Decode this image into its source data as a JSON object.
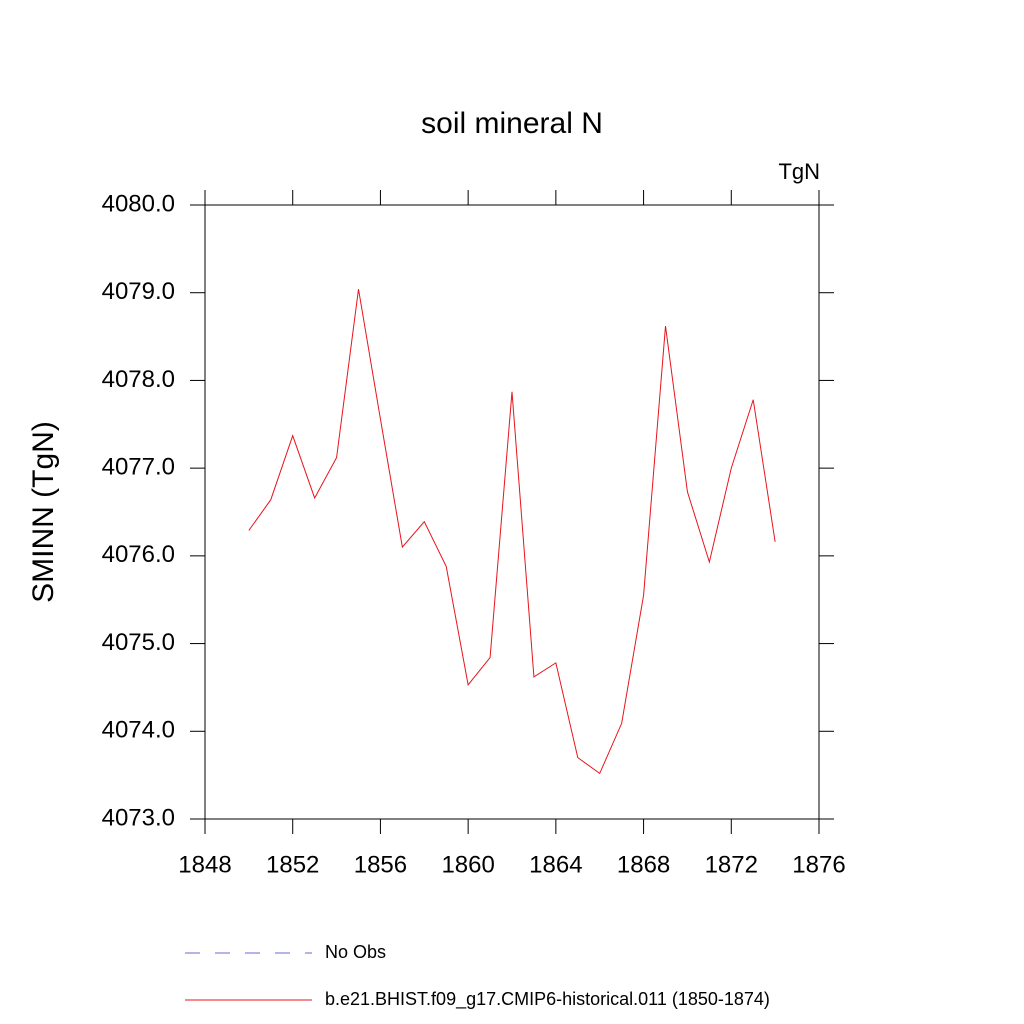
{
  "chart_data": {
    "type": "line",
    "title": "soil mineral N",
    "units": "TgN",
    "y_label": "SMINN  (TgN)",
    "x": [
      1850,
      1851,
      1852,
      1853,
      1854,
      1855,
      1856,
      1857,
      1858,
      1859,
      1860,
      1861,
      1862,
      1863,
      1864,
      1865,
      1866,
      1867,
      1868,
      1869,
      1870,
      1871,
      1872,
      1873,
      1874
    ],
    "series": [
      {
        "name": "b.e21.BHIST.f09_g17.CMIP6-historical.011 (1850-1874)",
        "color": "#e8141c",
        "values": [
          4076.29,
          4076.64,
          4077.37,
          4076.66,
          4077.12,
          4079.04,
          4077.56,
          4076.1,
          4076.39,
          4075.88,
          4074.53,
          4074.84,
          4077.87,
          4074.62,
          4074.78,
          4073.7,
          4073.52,
          4074.09,
          4075.55,
          4078.62,
          4076.73,
          4075.93,
          4077.0,
          4077.78,
          4076.16
        ]
      }
    ],
    "obs_legend": {
      "name": "No Obs",
      "color": "#6a6ad0",
      "dashed": true
    },
    "xlim": [
      1848,
      1876
    ],
    "xticks": [
      1848,
      1852,
      1856,
      1860,
      1864,
      1868,
      1872,
      1876
    ],
    "ylim": [
      4073,
      4080
    ],
    "yticks": [
      {
        "value": 4073,
        "label": "4073.0"
      },
      {
        "value": 4074,
        "label": "4074.0"
      },
      {
        "value": 4075,
        "label": "4075.0"
      },
      {
        "value": 4076,
        "label": "4076.0"
      },
      {
        "value": 4077,
        "label": "4077.0"
      },
      {
        "value": 4078,
        "label": "4078.0"
      },
      {
        "value": 4079,
        "label": "4079.0"
      },
      {
        "value": 4080,
        "label": "4080.0"
      }
    ],
    "grid": false
  }
}
